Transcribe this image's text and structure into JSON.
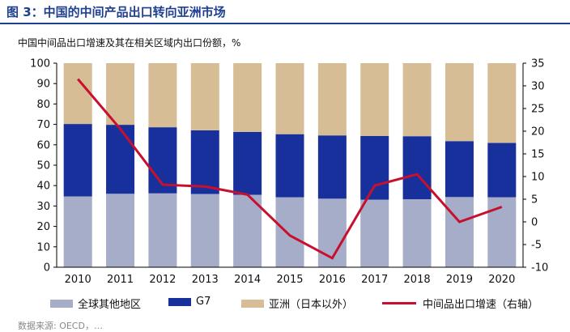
{
  "figure": {
    "title": "图 3：中国的中间产品出口转向亚洲市场",
    "subtitle": "中国中间品出口增速及其在相关区域内出口份额，%",
    "footnote": "数据来源: OECD，…"
  },
  "colors": {
    "title": "#1f3f8f",
    "other": "#a6adc8",
    "g7": "#17309b",
    "asia": "#d6bd96",
    "growth": "#c8102e"
  },
  "chart_data": {
    "type": "bar",
    "stacked": true,
    "categories": [
      "2010",
      "2011",
      "2012",
      "2013",
      "2014",
      "2015",
      "2016",
      "2017",
      "2018",
      "2019",
      "2020"
    ],
    "series": [
      {
        "name": "全球其他地区",
        "key": "other",
        "axis": "left",
        "values": [
          34.7,
          36.0,
          36.2,
          35.9,
          35.5,
          34.3,
          33.6,
          33.1,
          33.3,
          34.4,
          34.3
        ]
      },
      {
        "name": "G7",
        "key": "g7",
        "axis": "left",
        "values": [
          35.5,
          33.8,
          32.4,
          31.2,
          30.8,
          30.9,
          31.0,
          31.2,
          30.9,
          27.4,
          26.6
        ]
      },
      {
        "name": "亚洲（日本以外）",
        "key": "asia",
        "axis": "left",
        "values": [
          29.8,
          30.2,
          31.4,
          32.9,
          33.7,
          34.8,
          35.4,
          35.7,
          35.8,
          38.2,
          39.1
        ]
      },
      {
        "name": "中间品出口增速（右轴）",
        "key": "growth",
        "axis": "right",
        "type": "line",
        "values": [
          31.5,
          20.5,
          8.2,
          7.8,
          6.0,
          -3.0,
          -8.0,
          8.0,
          10.5,
          0.0,
          3.3
        ]
      }
    ],
    "y_left": {
      "min": 0,
      "max": 100,
      "ticks": [
        0,
        10,
        20,
        30,
        40,
        50,
        60,
        70,
        80,
        90,
        100
      ]
    },
    "y_right": {
      "min": -10,
      "max": 35,
      "ticks": [
        -10,
        -5,
        0,
        5,
        10,
        15,
        20,
        25,
        30,
        35
      ]
    },
    "legend_position": "bottom",
    "grid": false
  }
}
